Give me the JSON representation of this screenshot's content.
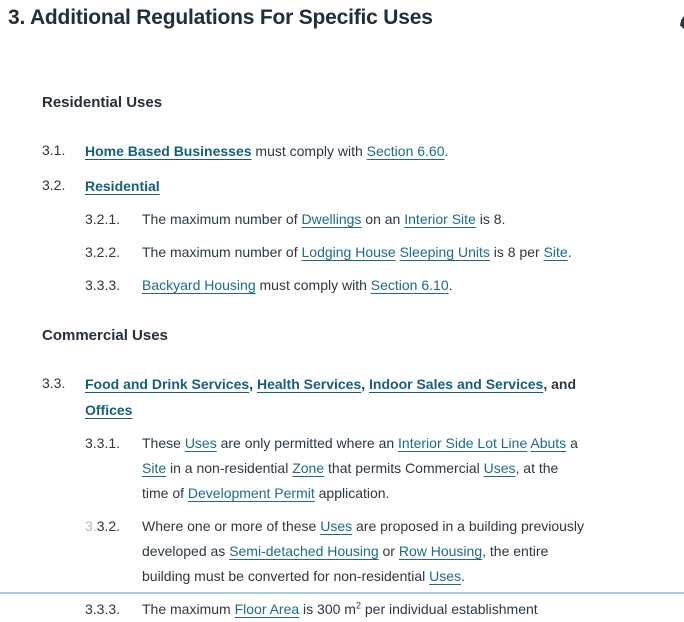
{
  "page": {
    "title": "3. Additional Regulations For Specific Uses"
  },
  "colors": {
    "text_dark": "#24303b",
    "body_text": "#2c3842",
    "link_teal": "#1e6b82",
    "bold_link_teal": "#175f77",
    "faded_number": "#b2bcc3",
    "bottom_divider_blue": "#a9cbd6",
    "background": "#ffffff"
  },
  "sections": [
    {
      "heading": "Residential Uses",
      "items": [
        {
          "level": 1,
          "number": [
            {
              "t": "3.1.",
              "k": "plain"
            }
          ],
          "segments": [
            {
              "t": "Home Based Businesses",
              "k": "blink"
            },
            {
              "t": " must comply with ",
              "k": "plain"
            },
            {
              "t": "Section 6.60",
              "k": "link"
            },
            {
              "t": ".",
              "k": "plain"
            }
          ]
        },
        {
          "level": 1,
          "number": [
            {
              "t": "3.2.",
              "k": "plain"
            }
          ],
          "segments": [
            {
              "t": "Residential",
              "k": "blink"
            }
          ]
        },
        {
          "level": 2,
          "number": [
            {
              "t": "3.2.1.",
              "k": "plain"
            }
          ],
          "segments": [
            {
              "t": "The maximum number of ",
              "k": "plain"
            },
            {
              "t": "Dwellings",
              "k": "link"
            },
            {
              "t": " on an ",
              "k": "plain"
            },
            {
              "t": "Interior Site",
              "k": "link"
            },
            {
              "t": " is 8.",
              "k": "plain"
            }
          ]
        },
        {
          "level": 2,
          "number": [
            {
              "t": "3.2.2.",
              "k": "plain"
            }
          ],
          "segments": [
            {
              "t": "The maximum number of ",
              "k": "plain"
            },
            {
              "t": "Lodging House",
              "k": "link"
            },
            {
              "t": " ",
              "k": "plain"
            },
            {
              "t": "Sleeping Units",
              "k": "link"
            },
            {
              "t": " is 8 per ",
              "k": "plain"
            },
            {
              "t": "Site",
              "k": "link"
            },
            {
              "t": ".",
              "k": "plain"
            }
          ]
        },
        {
          "level": 2,
          "number": [
            {
              "t": "3.3.3.",
              "k": "plain"
            }
          ],
          "segments": [
            {
              "t": "Backyard Housing",
              "k": "link"
            },
            {
              "t": " must comply with ",
              "k": "plain"
            },
            {
              "t": "Section 6.10",
              "k": "link"
            },
            {
              "t": ".",
              "k": "plain"
            }
          ]
        }
      ]
    },
    {
      "heading": "Commercial Uses",
      "items": [
        {
          "level": 1,
          "number": [
            {
              "t": "3.3.",
              "k": "plain"
            }
          ],
          "segments": [
            {
              "t": "Food and Drink Services",
              "k": "blink"
            },
            {
              "t": ", ",
              "k": "bold"
            },
            {
              "t": "Health Services",
              "k": "blink"
            },
            {
              "t": ", ",
              "k": "bold"
            },
            {
              "t": "Indoor Sales and Services",
              "k": "blink"
            },
            {
              "t": ", and\n",
              "k": "bold"
            },
            {
              "t": "Offices",
              "k": "blink"
            }
          ]
        },
        {
          "level": 2,
          "number": [
            {
              "t": "3.3.1.",
              "k": "plain"
            }
          ],
          "segments": [
            {
              "t": "These ",
              "k": "plain"
            },
            {
              "t": "Uses",
              "k": "link"
            },
            {
              "t": " are only permitted where an ",
              "k": "plain"
            },
            {
              "t": "Interior Side Lot Line",
              "k": "link"
            },
            {
              "t": " ",
              "k": "plain"
            },
            {
              "t": "Abuts",
              "k": "link"
            },
            {
              "t": " a\n",
              "k": "plain"
            },
            {
              "t": "Site",
              "k": "link"
            },
            {
              "t": " in a non-residential ",
              "k": "plain"
            },
            {
              "t": "Zone",
              "k": "link"
            },
            {
              "t": " that permits Commercial ",
              "k": "plain"
            },
            {
              "t": "Uses",
              "k": "link"
            },
            {
              "t": ", at the\ntime of ",
              "k": "plain"
            },
            {
              "t": "Development Permit",
              "k": "link"
            },
            {
              "t": " application.",
              "k": "plain"
            }
          ]
        },
        {
          "level": 2,
          "number": [
            {
              "t": "3.",
              "k": "faded"
            },
            {
              "t": "3.2.",
              "k": "plain"
            }
          ],
          "segments": [
            {
              "t": "Where one or more of these ",
              "k": "plain"
            },
            {
              "t": "Uses",
              "k": "link"
            },
            {
              "t": " are proposed in a building previously\ndeveloped as ",
              "k": "plain"
            },
            {
              "t": "Semi-detached Housing",
              "k": "link"
            },
            {
              "t": " or ",
              "k": "plain"
            },
            {
              "t": "Row Housing",
              "k": "link"
            },
            {
              "t": ", the entire\nbuilding must be converted for non-residential ",
              "k": "plain"
            },
            {
              "t": "Uses",
              "k": "link"
            },
            {
              "t": ".",
              "k": "plain"
            }
          ]
        },
        {
          "level": 2,
          "number": [
            {
              "t": "3.3.3.",
              "k": "plain"
            }
          ],
          "segments": [
            {
              "t": "The maximum ",
              "k": "plain"
            },
            {
              "t": "Floor Area",
              "k": "link"
            },
            {
              "t": " is 300 m",
              "k": "plain"
            },
            {
              "t": "2",
              "k": "sup"
            },
            {
              "t": " per individual establishment",
              "k": "plain"
            }
          ]
        }
      ]
    }
  ]
}
